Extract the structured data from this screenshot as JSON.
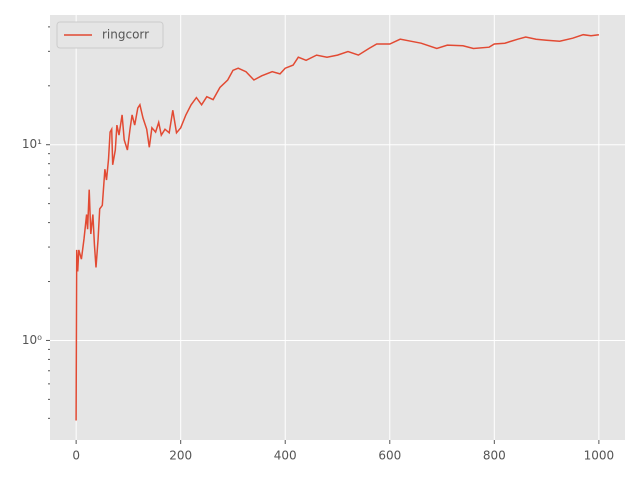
{
  "chart_data": {
    "type": "line",
    "yscale": "log",
    "grid": true,
    "legend_loc": "upper left",
    "xlim": [
      -50,
      1050
    ],
    "xticks": [
      0,
      200,
      400,
      600,
      800,
      1000
    ],
    "ylim": [
      0.31,
      46
    ],
    "yticks": [
      {
        "value": 1,
        "label": "10⁰"
      },
      {
        "value": 10,
        "label": "10¹"
      }
    ],
    "yminorticks": [
      0.4,
      0.5,
      0.6,
      0.7,
      0.8,
      0.9,
      2,
      3,
      4,
      5,
      6,
      7,
      8,
      9,
      20,
      30,
      40
    ],
    "x": [
      0,
      1,
      3,
      5,
      10,
      15,
      20,
      22,
      25,
      28,
      32,
      35,
      38,
      42,
      45,
      50,
      55,
      58,
      62,
      65,
      68,
      70,
      75,
      78,
      82,
      88,
      92,
      98,
      103,
      107,
      112,
      118,
      122,
      128,
      135,
      140,
      145,
      152,
      158,
      163,
      170,
      178,
      185,
      192,
      200,
      210,
      220,
      230,
      240,
      250,
      262,
      275,
      290,
      300,
      310,
      325,
      340,
      355,
      375,
      390,
      400,
      415,
      425,
      440,
      460,
      480,
      500,
      520,
      540,
      560,
      575,
      600,
      620,
      640,
      660,
      690,
      710,
      740,
      760,
      790,
      800,
      820,
      845,
      860,
      880,
      900,
      925,
      950,
      970,
      985,
      1000
    ],
    "series": [
      {
        "name": "ringcorr",
        "color": "#e24a33",
        "values": [
          0.39,
          2.9,
          2.25,
          2.9,
          2.6,
          3.3,
          4.4,
          3.7,
          5.9,
          3.5,
          4.4,
          3.1,
          2.36,
          3.3,
          4.7,
          4.9,
          7.5,
          6.6,
          8.4,
          11.6,
          12,
          7.9,
          9.4,
          12.6,
          11.2,
          14.2,
          10.6,
          9.4,
          12,
          14.2,
          12.6,
          15.4,
          16,
          13.7,
          12,
          9.7,
          12.2,
          11.6,
          13,
          11.2,
          12,
          11.5,
          15,
          11.5,
          12.2,
          14.2,
          16,
          17.4,
          16,
          17.6,
          17,
          19.6,
          21.4,
          24,
          24.6,
          23.6,
          21.4,
          22.5,
          23.6,
          23,
          24.6,
          25.5,
          28,
          27,
          28.7,
          28,
          28.7,
          29.9,
          28.7,
          31,
          32.7,
          32.7,
          34.6,
          33.8,
          33,
          31,
          32.3,
          32,
          31,
          31.5,
          32.7,
          33,
          34.6,
          35.5,
          34.6,
          34.2,
          33.8,
          35,
          36.5,
          36,
          36.5
        ]
      }
    ]
  }
}
